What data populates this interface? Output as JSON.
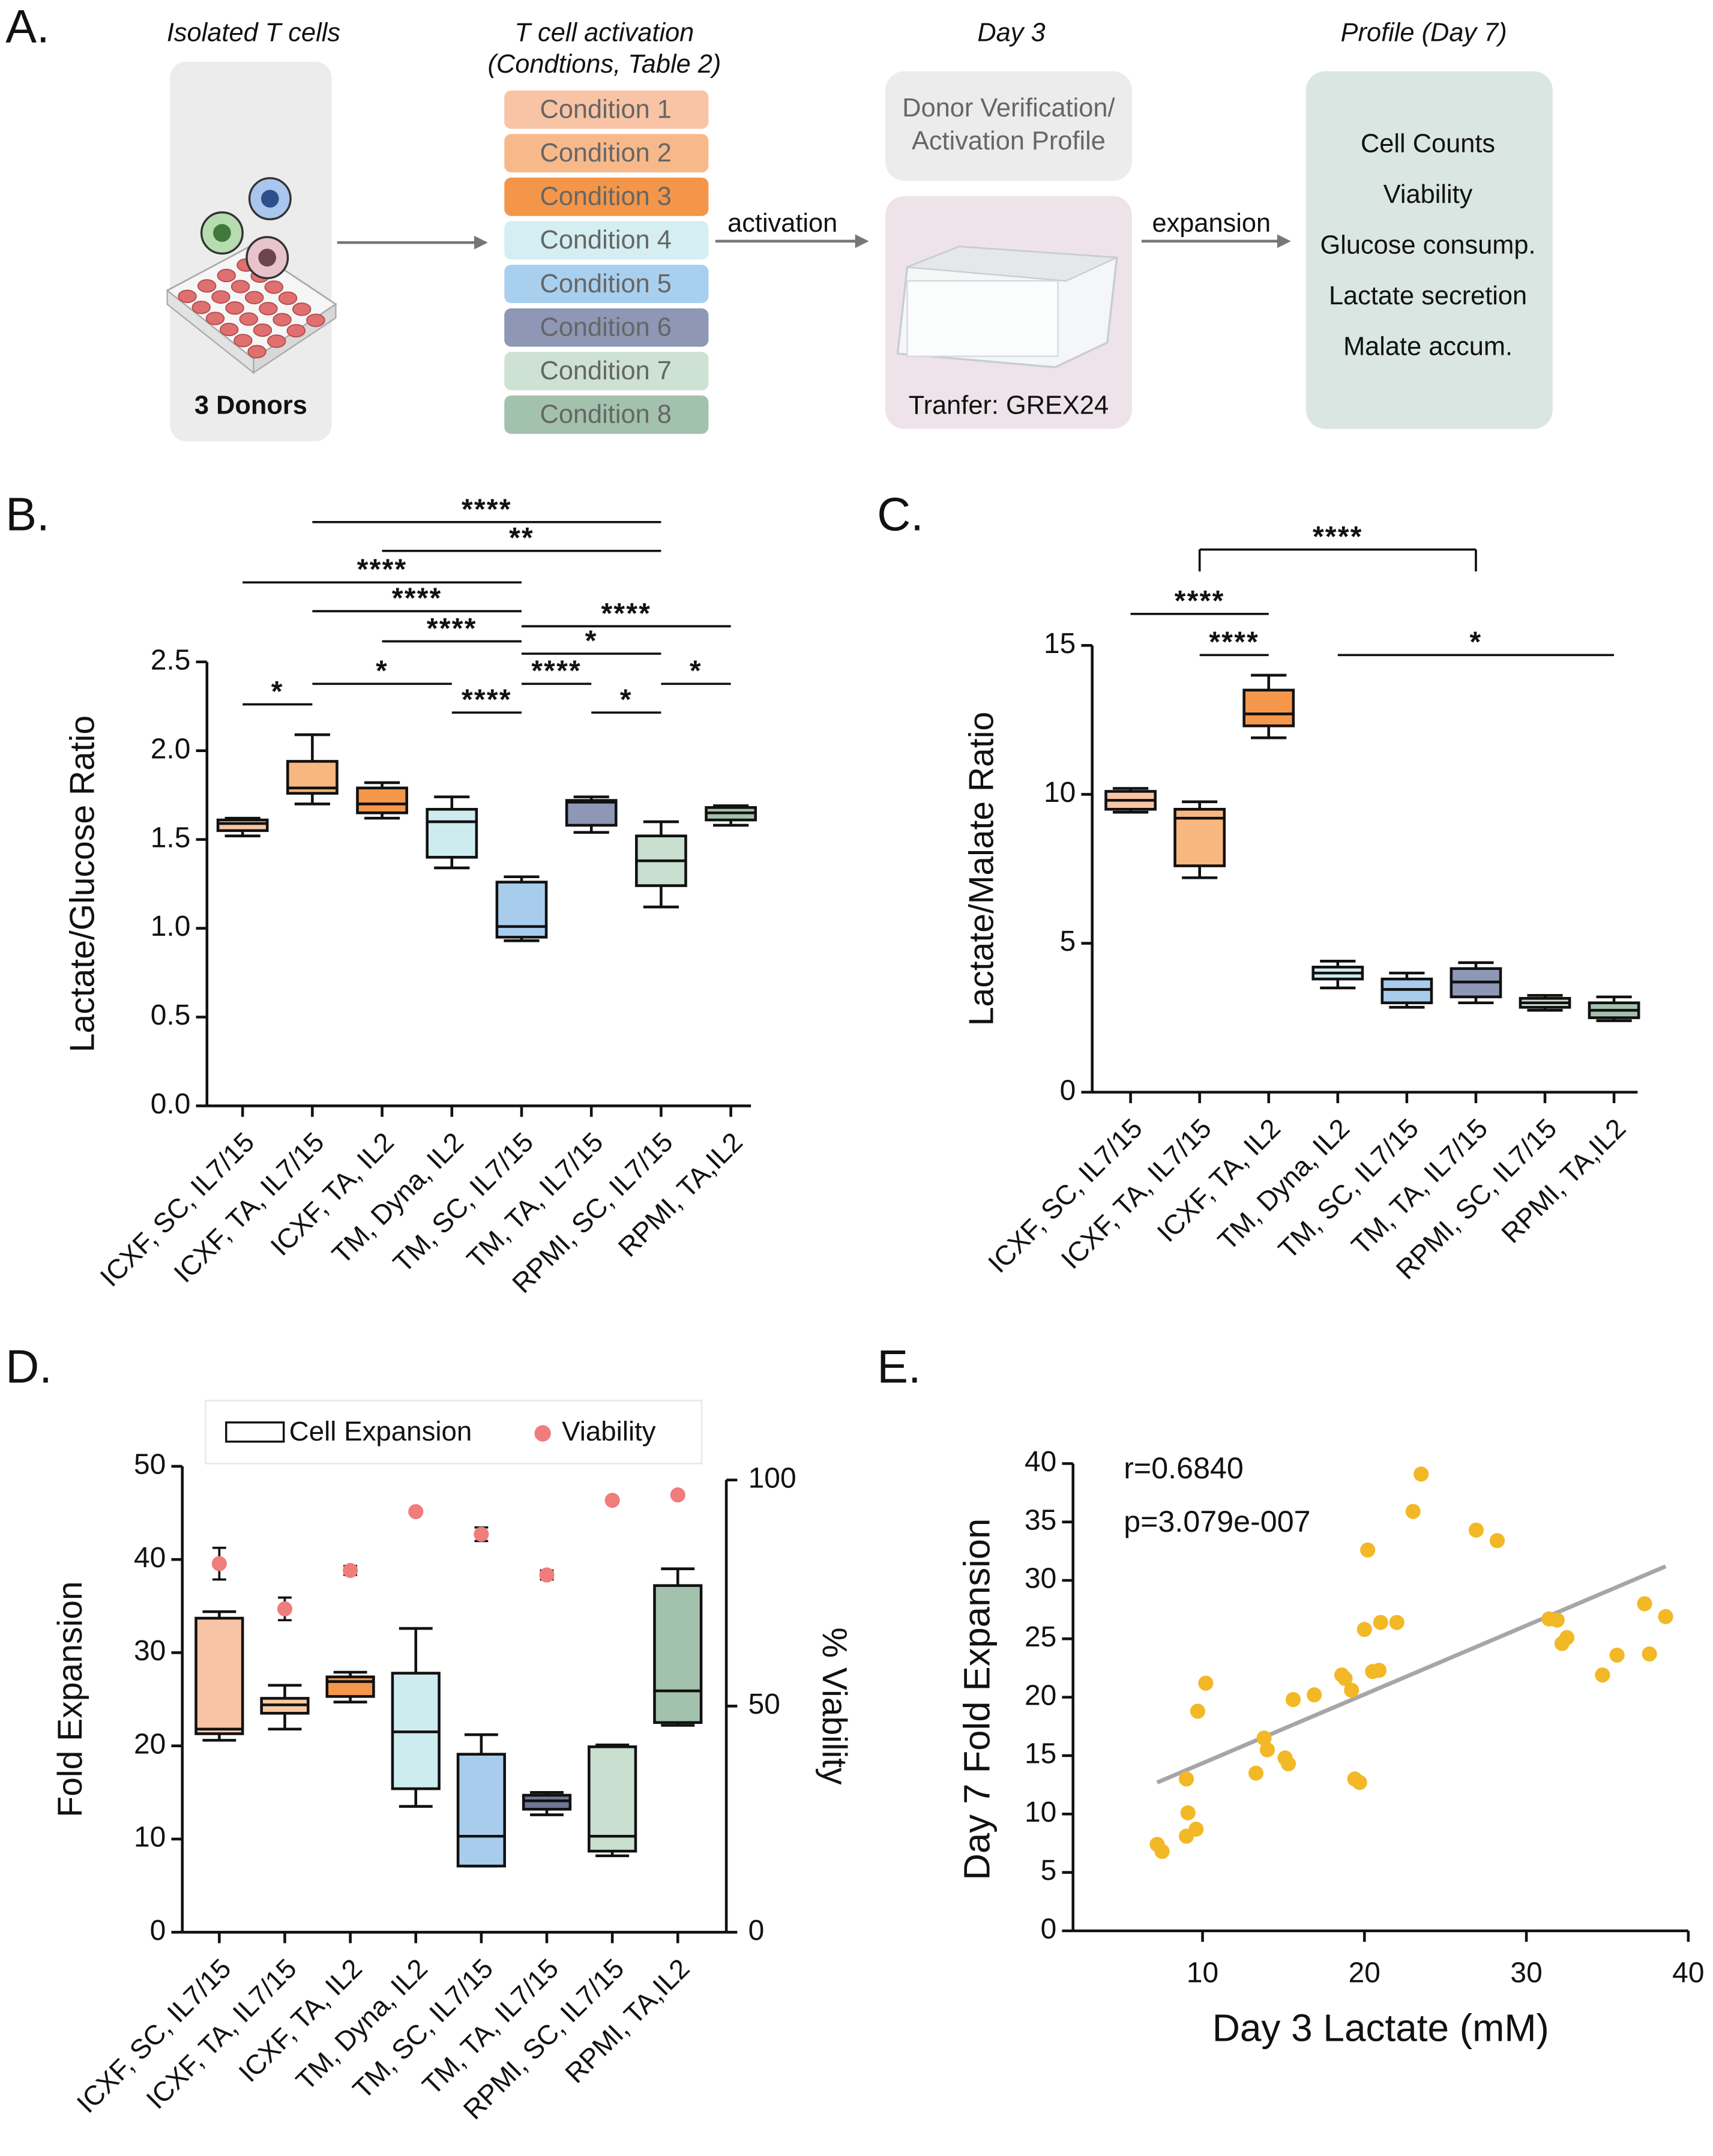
{
  "diagram": {
    "label": "A.",
    "isolated": {
      "title": "Isolated T cells",
      "caption": "3 Donors"
    },
    "activation": {
      "title": [
        "T cell activation",
        "(Condtions, Table 2)"
      ],
      "conditions": [
        "Condition 1",
        "Condition 2",
        "Condition 3",
        "Condition 4",
        "Condition 5",
        "Condition 6",
        "Condition 7",
        "Condition 8"
      ],
      "colors": [
        "#f9c4a5",
        "#f8b98a",
        "#f39649",
        "#d4eef2",
        "#a9cfee",
        "#8e97b5",
        "#cde2d3",
        "#a3c2ad"
      ]
    },
    "arrows": [
      "activation",
      "expansion"
    ],
    "day3": {
      "title": "Day 3",
      "verification": [
        "Donor Verification/",
        "Activation Profile"
      ],
      "transfer": "Tranfer: GREX24"
    },
    "profile": {
      "title": "Profile (Day 7)",
      "items": [
        "Cell Counts",
        "Viability",
        "Glucose consump.",
        "Lactate secretion",
        "Malate accum."
      ]
    }
  },
  "chart_data": [
    {
      "type": "box",
      "label": "B.",
      "ylabel": "Lactate/Glucose Ratio",
      "categories": [
        "ICXF, SC, IL7/15",
        "ICXF, TA, IL7/15",
        "ICXF, TA, IL2",
        "TM, Dyna, IL2",
        "TM, SC, IL7/15",
        "TM, TA, IL7/15",
        "RPMI, SC, IL7/15",
        "RPMI, TA,IL2"
      ],
      "colors": [
        "#f9c4a5",
        "#f8b77f",
        "#f4974a",
        "#cdecf0",
        "#a8cdec",
        "#8e97b5",
        "#c9dfd0",
        "#a3c2ad"
      ],
      "series": [
        {
          "boxes": [
            {
              "min": 1.52,
              "q1": 1.55,
              "median": 1.59,
              "q3": 1.61,
              "max": 1.62
            },
            {
              "min": 1.7,
              "q1": 1.76,
              "median": 1.79,
              "q3": 1.94,
              "max": 2.09
            },
            {
              "min": 1.62,
              "q1": 1.65,
              "median": 1.7,
              "q3": 1.79,
              "max": 1.82
            },
            {
              "min": 1.34,
              "q1": 1.4,
              "median": 1.6,
              "q3": 1.67,
              "max": 1.74
            },
            {
              "min": 0.93,
              "q1": 0.95,
              "median": 1.01,
              "q3": 1.26,
              "max": 1.29
            },
            {
              "min": 1.54,
              "q1": 1.58,
              "median": 1.71,
              "q3": 1.72,
              "max": 1.74
            },
            {
              "min": 1.12,
              "q1": 1.24,
              "median": 1.38,
              "q3": 1.52,
              "max": 1.6
            },
            {
              "min": 1.58,
              "q1": 1.61,
              "median": 1.65,
              "q3": 1.68,
              "max": 1.69
            }
          ]
        }
      ],
      "ylim": [
        0,
        2.5
      ],
      "yticks": [
        {
          "value": 0,
          "label": "0.0"
        },
        0.5,
        {
          "value": 1,
          "label": "1.0"
        },
        1.5,
        {
          "value": 2,
          "label": "2.0"
        },
        2.5
      ],
      "comparisons": [
        {
          "groups": [
            1,
            6
          ],
          "label": "****"
        },
        {
          "groups": [
            2,
            6
          ],
          "label": "**"
        },
        {
          "groups": [
            0,
            4
          ],
          "label": "****"
        },
        {
          "groups": [
            1,
            4
          ],
          "label": "****"
        },
        {
          "groups": [
            2,
            4
          ],
          "label": "****"
        },
        {
          "groups": [
            4,
            7
          ],
          "label": "****"
        },
        {
          "groups": [
            4,
            6
          ],
          "label": "*"
        },
        {
          "groups": [
            4,
            5
          ],
          "label": "****"
        },
        {
          "groups": [
            0,
            1
          ],
          "label": "*"
        },
        {
          "groups": [
            1,
            3
          ],
          "label": "*"
        },
        {
          "groups": [
            3,
            4
          ],
          "label": "****"
        },
        {
          "groups": [
            5,
            6
          ],
          "label": "*"
        },
        {
          "groups": [
            6,
            7
          ],
          "label": "*"
        }
      ]
    },
    {
      "type": "box",
      "label": "C.",
      "ylabel": "Lactate/Malate Ratio",
      "categories": [
        "ICXF, SC, IL7/15",
        "ICXF, TA, IL7/15",
        "ICXF, TA, IL2",
        "TM, Dyna, IL2",
        "TM, SC, IL7/15",
        "TM, TA, IL7/15",
        "RPMI, SC, IL7/15",
        "RPMI, TA,IL2"
      ],
      "colors": [
        "#f9c4a5",
        "#f8b77f",
        "#f4974a",
        "#cdecf0",
        "#a8cdec",
        "#8e97b5",
        "#c9dfd0",
        "#a3c2ad"
      ],
      "series": [
        {
          "boxes": [
            {
              "min": 9.4,
              "q1": 9.5,
              "median": 9.8,
              "q3": 10.1,
              "max": 10.2
            },
            {
              "min": 7.2,
              "q1": 7.6,
              "median": 9.2,
              "q3": 9.5,
              "max": 9.75
            },
            {
              "min": 11.9,
              "q1": 12.3,
              "median": 12.7,
              "q3": 13.5,
              "max": 14.0
            },
            {
              "min": 3.5,
              "q1": 3.8,
              "median": 4.0,
              "q3": 4.2,
              "max": 4.4
            },
            {
              "min": 2.85,
              "q1": 3.0,
              "median": 3.45,
              "q3": 3.8,
              "max": 4.0
            },
            {
              "min": 3.0,
              "q1": 3.2,
              "median": 3.7,
              "q3": 4.15,
              "max": 4.35
            },
            {
              "min": 2.75,
              "q1": 2.85,
              "median": 3.0,
              "q3": 3.15,
              "max": 3.25
            },
            {
              "min": 2.4,
              "q1": 2.5,
              "median": 2.75,
              "q3": 3.0,
              "max": 3.2
            }
          ]
        }
      ],
      "ylim": [
        0,
        15
      ],
      "yticks": [
        0,
        5,
        10,
        15
      ],
      "comparisons": [
        {
          "groups": [
            1,
            5
          ],
          "label": "****"
        },
        {
          "groups": [
            0,
            2
          ],
          "label": "****"
        },
        {
          "groups": [
            1,
            2
          ],
          "label": "****"
        },
        {
          "groups": [
            3,
            7
          ],
          "label": "*"
        }
      ]
    },
    {
      "type": "box",
      "label": "D.",
      "ylabel": "Fold Expansion",
      "y2label": "% Viability",
      "legend": "top",
      "categories": [
        "ICXF, SC, IL7/15",
        "ICXF, TA, IL7/15",
        "ICXF, TA, IL2",
        "TM, Dyna, IL2",
        "TM, SC, IL7/15",
        "TM, TA, IL7/15",
        "RPMI, SC, IL7/15",
        "RPMI, TA,IL2"
      ],
      "colors": [
        "#f9c4a5",
        "#f8c9a2",
        "#f4974a",
        "#cdecf0",
        "#a8cdec",
        "#6f7694",
        "#c9dfd0",
        "#a3c2ad"
      ],
      "series": [
        {
          "name": "Cell Expansion",
          "boxes": [
            {
              "min": 20.6,
              "q1": 21.3,
              "median": 21.8,
              "q3": 33.7,
              "max": 34.4
            },
            {
              "min": 21.8,
              "q1": 23.5,
              "median": 24.4,
              "q3": 25.1,
              "max": 26.5
            },
            {
              "min": 24.7,
              "q1": 25.3,
              "median": 26.9,
              "q3": 27.4,
              "max": 27.9
            },
            {
              "min": 13.5,
              "q1": 15.4,
              "median": 21.5,
              "q3": 27.8,
              "max": 32.6
            },
            {
              "min": 7.1,
              "q1": 7.1,
              "median": 10.3,
              "q3": 19.1,
              "max": 21.2
            },
            {
              "min": 12.6,
              "q1": 13.2,
              "median": 14.1,
              "q3": 14.7,
              "max": 15.0
            },
            {
              "min": 8.2,
              "q1": 8.7,
              "median": 10.3,
              "q3": 19.9,
              "max": 20.1
            },
            {
              "min": 22.2,
              "q1": 22.5,
              "median": 25.9,
              "q3": 37.2,
              "max": 39.0
            }
          ]
        },
        {
          "name": "Viability",
          "color": "#f07c7c",
          "axis": "y2",
          "values": [
            81.5,
            71.5,
            80,
            93,
            88,
            79,
            95.5,
            96.7
          ],
          "errors": [
            3.5,
            2.5,
            1,
            0,
            1.5,
            1,
            0,
            0
          ]
        }
      ],
      "ylim": [
        0,
        50
      ],
      "yticks": [
        0,
        10,
        20,
        30,
        40,
        50
      ],
      "y2lim": [
        0,
        100
      ],
      "y2ticks": [
        0,
        50,
        100
      ]
    },
    {
      "type": "scatter",
      "label": "E.",
      "xlabel": "Day 3 Lactate  (mM)",
      "ylabel": "Day 7 Fold Expansion",
      "annotations": [
        "r=0.6840",
        "p=3.079e-007"
      ],
      "color": "#f2b826",
      "x": [
        7.2,
        7.5,
        9.0,
        9.1,
        9.0,
        9.6,
        9.7,
        10.2,
        13.3,
        13.8,
        14.0,
        15.1,
        15.3,
        15.6,
        16.9,
        18.6,
        18.8,
        19.2,
        19.4,
        19.7,
        20.0,
        20.2,
        20.5,
        20.9,
        21.0,
        22.0,
        23.0,
        23.5,
        26.9,
        28.2,
        31.4,
        31.9,
        32.2,
        32.5,
        34.7,
        35.6,
        37.3,
        37.6,
        38.6
      ],
      "values": [
        7.4,
        6.8,
        13.0,
        10.1,
        8.1,
        8.7,
        18.8,
        21.2,
        13.5,
        16.5,
        15.5,
        14.8,
        14.3,
        19.8,
        20.2,
        21.9,
        21.6,
        20.6,
        13.0,
        12.7,
        25.8,
        32.6,
        22.2,
        22.3,
        26.4,
        26.4,
        35.9,
        39.1,
        34.3,
        33.4,
        26.7,
        26.6,
        24.6,
        25.1,
        21.9,
        23.6,
        28.0,
        23.7,
        26.9
      ],
      "fit": {
        "x": [
          7.2,
          38.6
        ],
        "y": [
          12.7,
          31.2
        ],
        "color": "#a6a6a6"
      },
      "xlim": [
        2,
        40
      ],
      "xticks": [
        10,
        20,
        30,
        40
      ],
      "ylim": [
        0,
        40
      ],
      "yticks": [
        0,
        5,
        10,
        15,
        20,
        25,
        30,
        35,
        40
      ]
    }
  ]
}
